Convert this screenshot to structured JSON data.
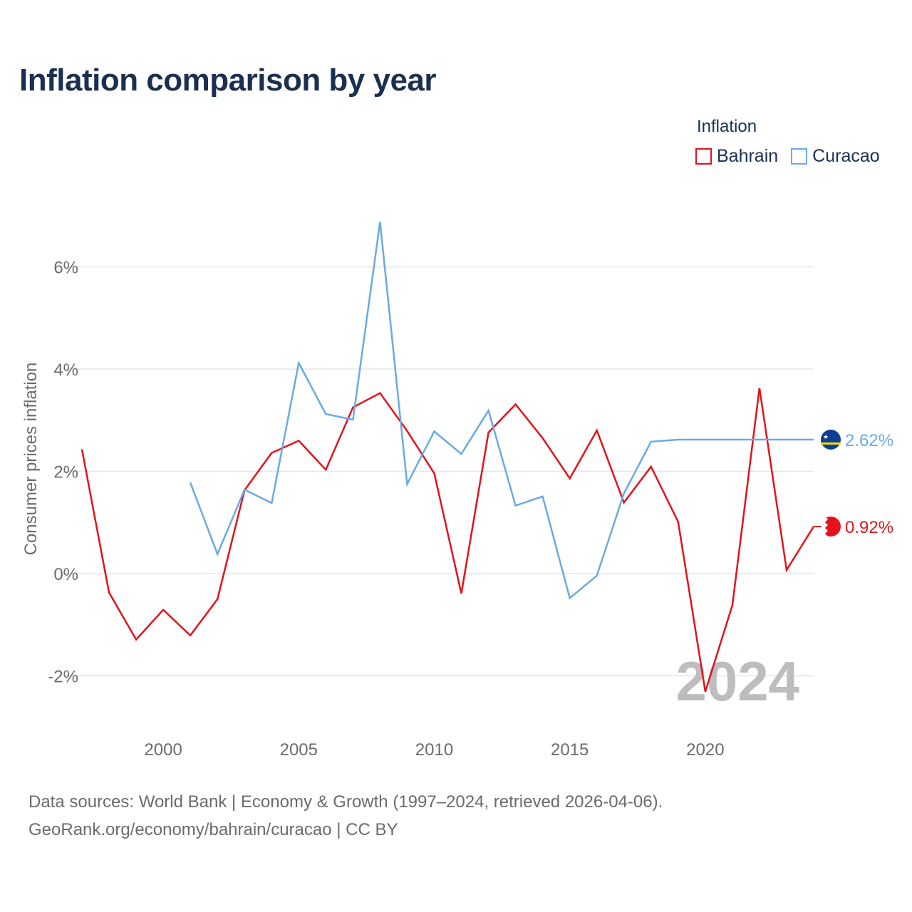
{
  "title": "Inflation comparison by year",
  "legend": {
    "title": "Inflation",
    "items": [
      {
        "label": "Bahrain",
        "color": "#e3121b"
      },
      {
        "label": "Curacao",
        "color": "#6aaae4"
      }
    ]
  },
  "source": {
    "line1": "Data sources: World Bank | Economy & Growth (1997–2024, retrieved 2026-04-06).",
    "line2": "GeoRank.org/economy/bahrain/curacao | CC BY"
  },
  "chart_data": {
    "type": "line",
    "title": "Inflation comparison by year",
    "ylabel": "Consumer prices inflation",
    "xlabel": "",
    "xlim": [
      1997,
      2024
    ],
    "ylim": [
      -2.9,
      7.2
    ],
    "x_ticks": [
      2000,
      2005,
      2010,
      2015,
      2020
    ],
    "y_ticks": [
      -2,
      0,
      2,
      4,
      6
    ],
    "y_tick_labels": [
      "-2%",
      "0%",
      "2%",
      "4%",
      "6%"
    ],
    "year_watermark": "2024",
    "series": [
      {
        "name": "Bahrain",
        "color": "#e3121b",
        "end_label": "0.92%",
        "flag_icon": "bahrain-flag-icon",
        "x": [
          1997,
          1998,
          1999,
          2000,
          2001,
          2002,
          2003,
          2004,
          2005,
          2006,
          2007,
          2008,
          2009,
          2010,
          2011,
          2012,
          2013,
          2014,
          2015,
          2016,
          2017,
          2018,
          2019,
          2020,
          2021,
          2022,
          2023,
          2024
        ],
        "values": [
          2.43,
          -0.37,
          -1.29,
          -0.71,
          -1.21,
          -0.5,
          1.63,
          2.36,
          2.6,
          2.03,
          3.25,
          3.53,
          2.79,
          1.96,
          -0.39,
          2.76,
          3.31,
          2.65,
          1.86,
          2.8,
          1.39,
          2.09,
          1.01,
          -2.31,
          -0.62,
          3.63,
          0.07,
          0.92
        ]
      },
      {
        "name": "Curacao",
        "color": "#6aaae4",
        "end_label": "2.62%",
        "flag_icon": "curacao-flag-icon",
        "x": [
          2001,
          2002,
          2003,
          2004,
          2005,
          2006,
          2007,
          2008,
          2009,
          2010,
          2011,
          2012,
          2013,
          2014,
          2015,
          2016,
          2017,
          2018,
          2019,
          2024
        ],
        "values": [
          1.78,
          0.38,
          1.64,
          1.38,
          4.12,
          3.12,
          3.01,
          6.88,
          1.75,
          2.78,
          2.34,
          3.19,
          1.33,
          1.51,
          -0.48,
          -0.04,
          1.57,
          2.58,
          2.62,
          2.62
        ]
      }
    ]
  }
}
